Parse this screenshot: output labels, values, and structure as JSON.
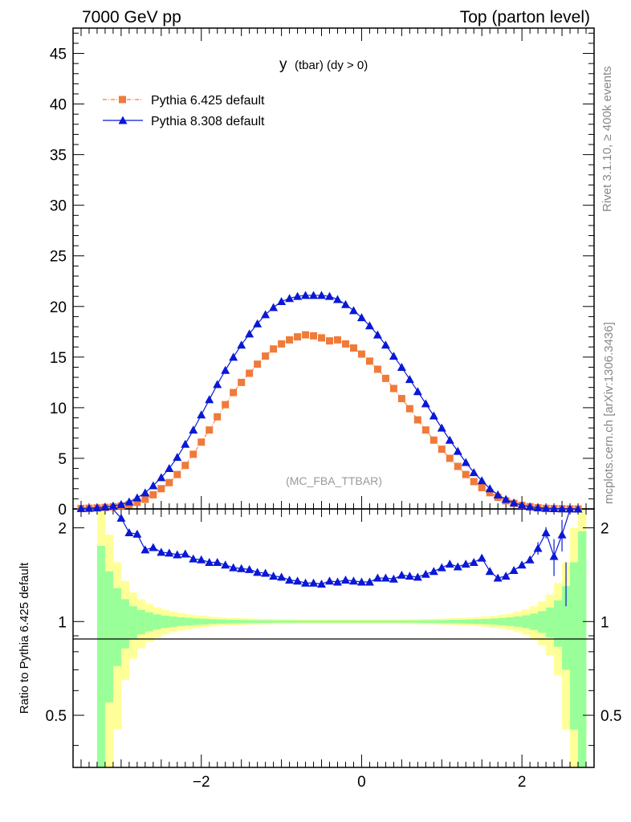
{
  "header": {
    "left": "7000 GeV pp",
    "right": "Top (parton level)"
  },
  "side": {
    "rivet": "Rivet 3.1.10, ≥ 400k events",
    "mcplots": "mcplots.cern.ch [arXiv:1306.3436]"
  },
  "chart_data": {
    "type": "line",
    "title_main": "y",
    "title_sub": "(tbar) (dy > 0)",
    "watermark": "(MC_FBA_TTBAR)",
    "ylabel_ratio": "Ratio to Pythia 6.425 default",
    "xlim": [
      -3.6,
      2.9
    ],
    "ylim_main": [
      0,
      47.5
    ],
    "ylim_ratio": [
      0.34,
      2.3
    ],
    "main_yticks": [
      "0",
      "5",
      "10",
      "15",
      "20",
      "25",
      "30",
      "35",
      "40",
      "45"
    ],
    "main_ytick_values": [
      0,
      5,
      10,
      15,
      20,
      25,
      30,
      35,
      40,
      45
    ],
    "ratio_yticks": [
      "0.5",
      "1",
      "2"
    ],
    "ratio_ytick_values": [
      0.5,
      1,
      2
    ],
    "xticks": [
      "−2",
      "0",
      "2"
    ],
    "xtick_values": [
      -2,
      0,
      2
    ],
    "series": [
      {
        "name": "Pythia 6.425 default",
        "color": "#f07a3a",
        "marker": "square",
        "x": [
          -3.5,
          -3.4,
          -3.3,
          -3.2,
          -3.1,
          -3.0,
          -2.9,
          -2.8,
          -2.7,
          -2.6,
          -2.5,
          -2.4,
          -2.3,
          -2.2,
          -2.1,
          -2.0,
          -1.9,
          -1.8,
          -1.7,
          -1.6,
          -1.5,
          -1.4,
          -1.3,
          -1.2,
          -1.1,
          -1.0,
          -0.9,
          -0.8,
          -0.7,
          -0.6,
          -0.5,
          -0.4,
          -0.3,
          -0.2,
          -0.1,
          0.0,
          0.1,
          0.2,
          0.3,
          0.4,
          0.5,
          0.6,
          0.7,
          0.8,
          0.9,
          1.0,
          1.1,
          1.2,
          1.3,
          1.4,
          1.5,
          1.6,
          1.7,
          1.8,
          1.9,
          2.0,
          2.1,
          2.2,
          2.3,
          2.4,
          2.5,
          2.6,
          2.7
        ],
        "y": [
          0.05,
          0.07,
          0.1,
          0.15,
          0.2,
          0.3,
          0.45,
          0.65,
          0.95,
          1.4,
          2.0,
          2.6,
          3.4,
          4.3,
          5.4,
          6.6,
          7.8,
          9.1,
          10.3,
          11.5,
          12.5,
          13.4,
          14.3,
          15.1,
          15.8,
          16.3,
          16.7,
          17.0,
          17.2,
          17.1,
          16.9,
          16.6,
          16.7,
          16.3,
          15.9,
          15.3,
          14.6,
          13.8,
          12.9,
          11.9,
          10.9,
          9.9,
          8.8,
          7.8,
          6.8,
          5.9,
          5.0,
          4.2,
          3.4,
          2.7,
          2.1,
          1.6,
          1.15,
          0.8,
          0.55,
          0.35,
          0.22,
          0.12,
          0.06,
          0.04,
          0.02,
          0.01,
          0.0
        ]
      },
      {
        "name": "Pythia 8.308 default",
        "color": "#0a18d6",
        "marker": "triangle",
        "x": [
          -3.5,
          -3.4,
          -3.3,
          -3.2,
          -3.1,
          -3.0,
          -2.9,
          -2.8,
          -2.7,
          -2.6,
          -2.5,
          -2.4,
          -2.3,
          -2.2,
          -2.1,
          -2.0,
          -1.9,
          -1.8,
          -1.7,
          -1.6,
          -1.5,
          -1.4,
          -1.3,
          -1.2,
          -1.1,
          -1.0,
          -0.9,
          -0.8,
          -0.7,
          -0.6,
          -0.5,
          -0.4,
          -0.3,
          -0.2,
          -0.1,
          0.0,
          0.1,
          0.2,
          0.3,
          0.4,
          0.5,
          0.6,
          0.7,
          0.8,
          0.9,
          1.0,
          1.1,
          1.2,
          1.3,
          1.4,
          1.5,
          1.6,
          1.7,
          1.8,
          1.9,
          2.0,
          2.1,
          2.2,
          2.3,
          2.4,
          2.5,
          2.6,
          2.7
        ],
        "y": [
          0.05,
          0.07,
          0.12,
          0.2,
          0.3,
          0.45,
          0.7,
          1.1,
          1.6,
          2.3,
          3.1,
          4.0,
          5.1,
          6.4,
          7.8,
          9.3,
          10.8,
          12.3,
          13.7,
          15.0,
          16.2,
          17.3,
          18.3,
          19.2,
          19.9,
          20.5,
          20.8,
          21.0,
          21.1,
          21.1,
          21.1,
          21.0,
          20.7,
          20.2,
          19.6,
          18.9,
          18.1,
          17.2,
          16.2,
          15.1,
          14.0,
          12.8,
          11.6,
          10.4,
          9.2,
          8.0,
          6.8,
          5.7,
          4.6,
          3.6,
          2.8,
          2.0,
          1.4,
          0.95,
          0.6,
          0.38,
          0.22,
          0.12,
          0.07,
          0.04,
          0.02,
          0.01,
          0.0
        ]
      }
    ],
    "ratio": {
      "x": [
        -3.0,
        -2.9,
        -2.8,
        -2.7,
        -2.6,
        -2.5,
        -2.4,
        -2.3,
        -2.2,
        -2.1,
        -2.0,
        -1.9,
        -1.8,
        -1.7,
        -1.6,
        -1.5,
        -1.4,
        -1.3,
        -1.2,
        -1.1,
        -1.0,
        -0.9,
        -0.8,
        -0.7,
        -0.6,
        -0.5,
        -0.4,
        -0.3,
        -0.2,
        -0.1,
        0.0,
        0.1,
        0.2,
        0.3,
        0.4,
        0.5,
        0.6,
        0.7,
        0.8,
        0.9,
        1.0,
        1.1,
        1.2,
        1.3,
        1.4,
        1.5,
        1.6,
        1.7,
        1.8,
        1.9,
        2.0,
        2.1,
        2.2,
        2.3,
        2.4,
        2.5
      ],
      "y": [
        2.15,
        1.93,
        1.91,
        1.7,
        1.73,
        1.67,
        1.66,
        1.64,
        1.65,
        1.59,
        1.58,
        1.55,
        1.55,
        1.52,
        1.49,
        1.48,
        1.47,
        1.44,
        1.43,
        1.4,
        1.39,
        1.36,
        1.35,
        1.33,
        1.33,
        1.32,
        1.35,
        1.34,
        1.36,
        1.35,
        1.34,
        1.34,
        1.38,
        1.38,
        1.37,
        1.41,
        1.4,
        1.39,
        1.42,
        1.45,
        1.49,
        1.53,
        1.5,
        1.53,
        1.55,
        1.6,
        1.45,
        1.38,
        1.4,
        1.46,
        1.52,
        1.58,
        1.72,
        1.93,
        1.62,
        1.9
      ]
    },
    "bands": {
      "edges": [
        -3.3,
        -3.2,
        -3.1,
        -3.0,
        -2.9,
        -2.8,
        -2.7,
        -2.6,
        -2.5,
        -2.4,
        -2.3,
        -2.2,
        -2.1,
        -2.0,
        -1.9,
        -1.8,
        -1.7,
        -1.6,
        -1.5,
        -1.4,
        -1.3,
        -1.2,
        -1.1,
        -1.0,
        -0.9,
        -0.8,
        -0.7,
        -0.6,
        -0.5,
        -0.4,
        -0.3,
        -0.2,
        -0.1,
        0.0,
        0.1,
        0.2,
        0.3,
        0.4,
        0.5,
        0.6,
        0.7,
        0.8,
        0.9,
        1.0,
        1.1,
        1.2,
        1.3,
        1.4,
        1.5,
        1.6,
        1.7,
        1.8,
        1.9,
        2.0,
        2.1,
        2.2,
        2.3,
        2.4,
        2.5,
        2.6,
        2.7,
        2.8
      ],
      "inner": [
        0.75,
        0.45,
        0.28,
        0.18,
        0.12,
        0.09,
        0.07,
        0.055,
        0.045,
        0.038,
        0.032,
        0.028,
        0.024,
        0.021,
        0.018,
        0.016,
        0.014,
        0.013,
        0.012,
        0.011,
        0.01,
        0.01,
        0.009,
        0.009,
        0.009,
        0.008,
        0.008,
        0.008,
        0.008,
        0.008,
        0.008,
        0.008,
        0.008,
        0.008,
        0.008,
        0.008,
        0.008,
        0.008,
        0.009,
        0.009,
        0.01,
        0.01,
        0.011,
        0.012,
        0.013,
        0.014,
        0.016,
        0.018,
        0.02,
        0.023,
        0.027,
        0.032,
        0.038,
        0.047,
        0.06,
        0.08,
        0.11,
        0.17,
        0.3,
        0.55,
        0.95
      ],
      "outer": [
        1.4,
        0.9,
        0.55,
        0.35,
        0.24,
        0.18,
        0.14,
        0.11,
        0.09,
        0.075,
        0.064,
        0.055,
        0.048,
        0.042,
        0.036,
        0.032,
        0.028,
        0.026,
        0.024,
        0.022,
        0.02,
        0.019,
        0.018,
        0.017,
        0.017,
        0.016,
        0.016,
        0.016,
        0.016,
        0.016,
        0.016,
        0.016,
        0.016,
        0.016,
        0.016,
        0.016,
        0.016,
        0.017,
        0.017,
        0.018,
        0.019,
        0.02,
        0.021,
        0.023,
        0.025,
        0.027,
        0.03,
        0.034,
        0.038,
        0.044,
        0.052,
        0.062,
        0.075,
        0.092,
        0.12,
        0.16,
        0.22,
        0.33,
        0.55,
        1.0,
        1.6
      ]
    }
  }
}
